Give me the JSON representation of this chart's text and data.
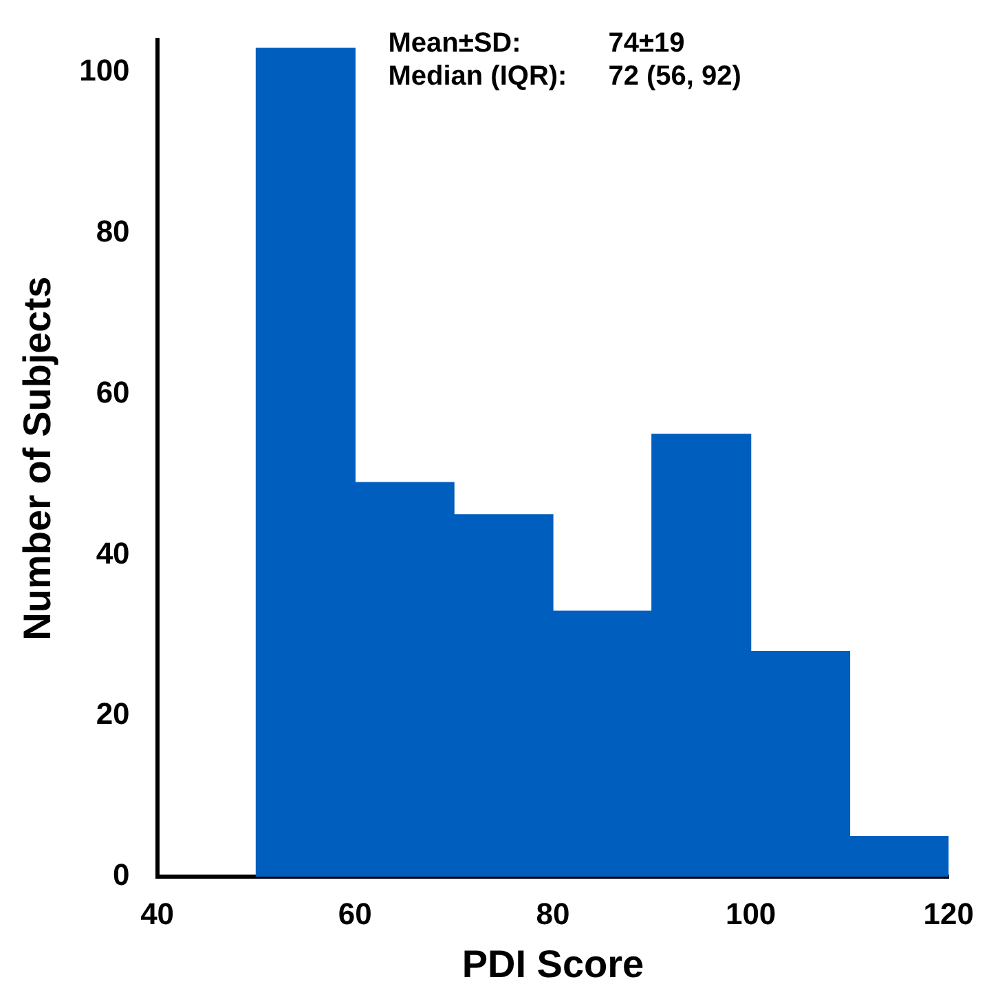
{
  "chart_data": {
    "type": "histogram",
    "xlabel": "PDI Score",
    "ylabel": "Number of Subjects",
    "bins": [
      50,
      60,
      70,
      80,
      90,
      100,
      110,
      120
    ],
    "values": [
      103,
      49,
      45,
      33,
      55,
      28,
      5
    ],
    "color": "#005ebf",
    "xlim": [
      40,
      120
    ],
    "xticks": [
      40,
      60,
      80,
      100,
      120
    ],
    "ylim": [
      0,
      104
    ],
    "yticks": [
      0,
      20,
      40,
      60,
      80,
      100
    ],
    "annotations": [
      "Mean±SD:        74±19",
      "Median (IQR):  72 (56, 92)"
    ]
  }
}
